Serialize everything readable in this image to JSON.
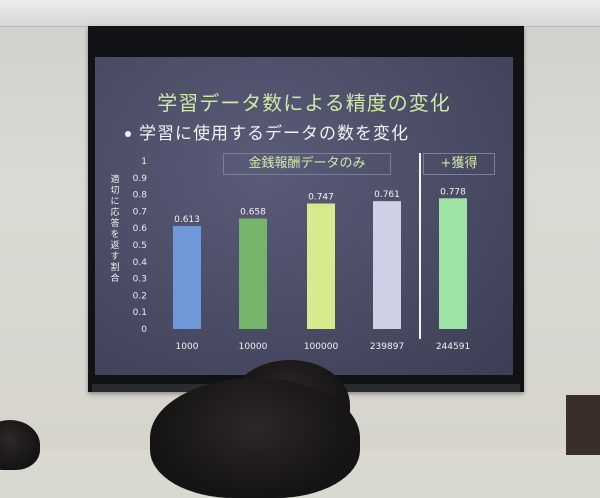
{
  "slide": {
    "title": "学習データ数による精度の変化",
    "bullet": "学習に使用するデータの数を変化",
    "tag_money": "金銭報酬データのみ",
    "tag_plus": "+獲得"
  },
  "chart_data": {
    "type": "bar",
    "ylabel": "適切に応答を返す割合",
    "ylim": [
      0,
      1
    ],
    "yticks": [
      "0",
      "0.1",
      "0.2",
      "0.3",
      "0.4",
      "0.5",
      "0.6",
      "0.7",
      "0.8",
      "0.9",
      "1"
    ],
    "categories": [
      "1000",
      "10000",
      "100000",
      "239897",
      "244591"
    ],
    "values": [
      0.613,
      0.658,
      0.747,
      0.761,
      0.778
    ],
    "labels": [
      "0.613",
      "0.658",
      "0.747",
      "0.761",
      "0.778"
    ],
    "colors": [
      "#6f98d8",
      "#72b56b",
      "#d6eb8d",
      "#cfcfe6",
      "#9fe2a6"
    ],
    "group_divider_after_index": 3,
    "grid": false,
    "legend": "none"
  }
}
